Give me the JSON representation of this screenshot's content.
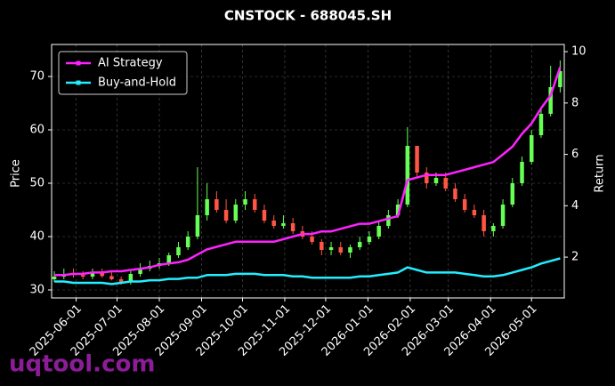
{
  "chart_data": {
    "type": "candlestick",
    "title": "CNSTOCK - 688045.SH",
    "ylabel": "Price",
    "y2label": "Return",
    "watermark": "uqtool.com",
    "legend": "upper left",
    "grid": true,
    "up_color": "#66ff55",
    "down_color": "#ff5544",
    "x": [
      "2025-05-16",
      "2025-05-23",
      "2025-05-30",
      "2025-06-06",
      "2025-06-13",
      "2025-06-20",
      "2025-06-27",
      "2025-07-04",
      "2025-07-11",
      "2025-07-18",
      "2025-07-25",
      "2025-08-01",
      "2025-08-08",
      "2025-08-15",
      "2025-08-22",
      "2025-08-29",
      "2025-09-05",
      "2025-09-12",
      "2025-09-19",
      "2025-09-26",
      "2025-10-03",
      "2025-10-10",
      "2025-10-17",
      "2025-10-24",
      "2025-10-31",
      "2025-11-07",
      "2025-11-14",
      "2025-11-21",
      "2025-11-28",
      "2025-12-05",
      "2025-12-12",
      "2025-12-19",
      "2025-12-26",
      "2026-01-02",
      "2026-01-09",
      "2026-01-16",
      "2026-01-23",
      "2026-01-30",
      "2026-02-06",
      "2026-02-13",
      "2026-02-20",
      "2026-02-27",
      "2026-03-06",
      "2026-03-13",
      "2026-03-20",
      "2026-03-27",
      "2026-04-03",
      "2026-04-10",
      "2026-04-17",
      "2026-04-24",
      "2026-05-01",
      "2026-05-08",
      "2026-05-15",
      "2026-05-22"
    ],
    "open": [
      32,
      32.5,
      33,
      32.8,
      32.5,
      33.2,
      32.6,
      32,
      31.5,
      33,
      34,
      34.5,
      35,
      36.5,
      38,
      40,
      44,
      47,
      45,
      43,
      46,
      47,
      45,
      43,
      42,
      42.5,
      41,
      40,
      39,
      37.5,
      38,
      37,
      38,
      39,
      40,
      42,
      44,
      46,
      57,
      52,
      50,
      51,
      49,
      47,
      45,
      44,
      41,
      42,
      46,
      50,
      54,
      59,
      63,
      68
    ],
    "high": [
      33.5,
      34,
      34,
      33.5,
      34,
      34,
      33.5,
      32.5,
      33.5,
      35,
      35.5,
      36,
      37,
      39,
      41,
      53,
      50,
      48.5,
      47,
      47,
      48.5,
      48,
      46,
      44,
      44,
      43.5,
      42,
      41,
      39.5,
      39,
      39,
      38.5,
      40,
      41,
      43,
      45,
      47,
      60.5,
      57,
      53,
      52,
      52,
      50,
      48,
      46,
      45,
      42.5,
      47,
      51,
      55,
      60,
      64,
      72,
      73
    ],
    "low": [
      31.5,
      32,
      32.3,
      32,
      32,
      32.3,
      31.8,
      31,
      31,
      32.5,
      33.5,
      34,
      34.5,
      36,
      37.5,
      39.5,
      43,
      44.5,
      42.5,
      42.5,
      45,
      44.5,
      42.5,
      41.5,
      41.5,
      40.5,
      39.5,
      38.5,
      36.5,
      36.5,
      36.5,
      36,
      37.5,
      38.5,
      39.5,
      41.5,
      43.5,
      45.5,
      51,
      49,
      49.5,
      48.5,
      46.5,
      44.5,
      43.5,
      40,
      40,
      41.5,
      45.5,
      49.5,
      53.5,
      58.5,
      62.5,
      67
    ],
    "close": [
      32.5,
      33,
      32.8,
      32.5,
      33.2,
      32.6,
      32,
      31.5,
      33,
      34,
      34.5,
      35,
      36.5,
      38,
      40,
      44,
      47,
      45,
      43,
      46,
      47,
      45,
      43,
      42,
      42.5,
      41,
      40,
      39,
      37.5,
      38,
      37,
      38,
      39,
      40,
      42,
      44,
      46,
      57,
      52,
      50,
      51,
      49,
      47,
      45,
      44,
      41,
      42,
      46,
      50,
      54,
      59,
      63,
      68,
      71
    ],
    "series": [
      {
        "name": "AI Strategy",
        "color": "#ff22ff",
        "axis": "y2",
        "values": [
          1.3,
          1.3,
          1.35,
          1.35,
          1.4,
          1.4,
          1.45,
          1.45,
          1.5,
          1.55,
          1.6,
          1.7,
          1.75,
          1.8,
          1.9,
          2.1,
          2.3,
          2.4,
          2.5,
          2.6,
          2.6,
          2.6,
          2.6,
          2.6,
          2.7,
          2.8,
          2.9,
          2.9,
          3.0,
          3.0,
          3.1,
          3.2,
          3.3,
          3.3,
          3.4,
          3.5,
          3.6,
          5.0,
          5.1,
          5.2,
          5.2,
          5.2,
          5.3,
          5.4,
          5.5,
          5.6,
          5.7,
          6.0,
          6.3,
          6.8,
          7.2,
          7.8,
          8.3,
          9.4
        ]
      },
      {
        "name": "Buy-and-Hold",
        "color": "#22eeff",
        "axis": "y2",
        "values": [
          1.05,
          1.05,
          1.0,
          1.0,
          1.0,
          1.0,
          0.95,
          1.0,
          1.05,
          1.05,
          1.1,
          1.1,
          1.15,
          1.15,
          1.2,
          1.2,
          1.3,
          1.3,
          1.3,
          1.35,
          1.35,
          1.35,
          1.3,
          1.3,
          1.3,
          1.25,
          1.25,
          1.2,
          1.2,
          1.2,
          1.2,
          1.2,
          1.25,
          1.25,
          1.3,
          1.35,
          1.4,
          1.6,
          1.5,
          1.4,
          1.4,
          1.4,
          1.4,
          1.35,
          1.3,
          1.25,
          1.25,
          1.3,
          1.4,
          1.5,
          1.6,
          1.75,
          1.85,
          1.95
        ]
      }
    ],
    "xlim": [
      "2025-05-14",
      "2026-05-25"
    ],
    "xticks": [
      "2025-06-01",
      "2025-07-01",
      "2025-08-01",
      "2025-09-01",
      "2025-10-01",
      "2025-11-01",
      "2025-12-01",
      "2026-01-01",
      "2026-02-01",
      "2026-03-01",
      "2026-04-01",
      "2026-05-01"
    ],
    "ylim": [
      28.5,
      76
    ],
    "yticks": [
      30,
      40,
      50,
      60,
      70
    ],
    "y2lim": [
      0.41,
      10.28
    ],
    "y2ticks": [
      2,
      4,
      6,
      8,
      10
    ]
  }
}
